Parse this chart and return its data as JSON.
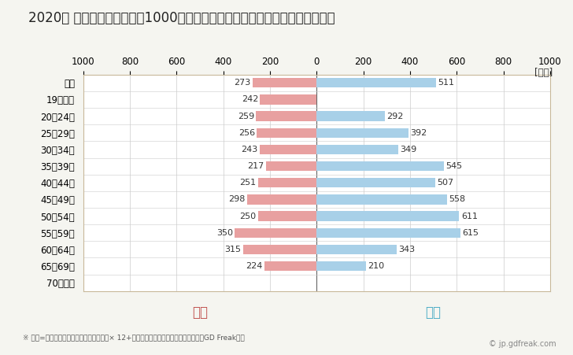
{
  "title": "2020年 民間企業（従業者数1000人以上）フルタイム労働者の男女別平均年収",
  "unit_label": "[万円]",
  "categories": [
    "全体",
    "19歳以下",
    "20〜24歳",
    "25〜29歳",
    "30〜34歳",
    "35〜39歳",
    "40〜44歳",
    "45〜49歳",
    "50〜54歳",
    "55〜59歳",
    "60〜64歳",
    "65〜69歳",
    "70歳以上"
  ],
  "female_values": [
    273,
    242,
    259,
    256,
    243,
    217,
    251,
    298,
    250,
    350,
    315,
    224,
    0
  ],
  "male_values": [
    511,
    0,
    292,
    392,
    349,
    545,
    507,
    558,
    611,
    615,
    343,
    210,
    0
  ],
  "female_color": "#e8a0a0",
  "male_color": "#a8d0e8",
  "female_label": "女性",
  "male_label": "男性",
  "female_label_color": "#c0504d",
  "male_label_color": "#4bacc6",
  "xlim": 1000,
  "background_color": "#f5f5f0",
  "plot_bg_color": "#ffffff",
  "grid_color": "#cccccc",
  "title_fontsize": 12,
  "tick_fontsize": 8.5,
  "bar_label_fontsize": 8,
  "gender_label_fontsize": 12,
  "footnote": "※ 年収=「きまって支給する現金給与額」× 12+「年間賞与その他特別給与額」としてGD Freak推計",
  "copyright": "© jp.gdfreak.com",
  "border_color": "#c8b89a"
}
